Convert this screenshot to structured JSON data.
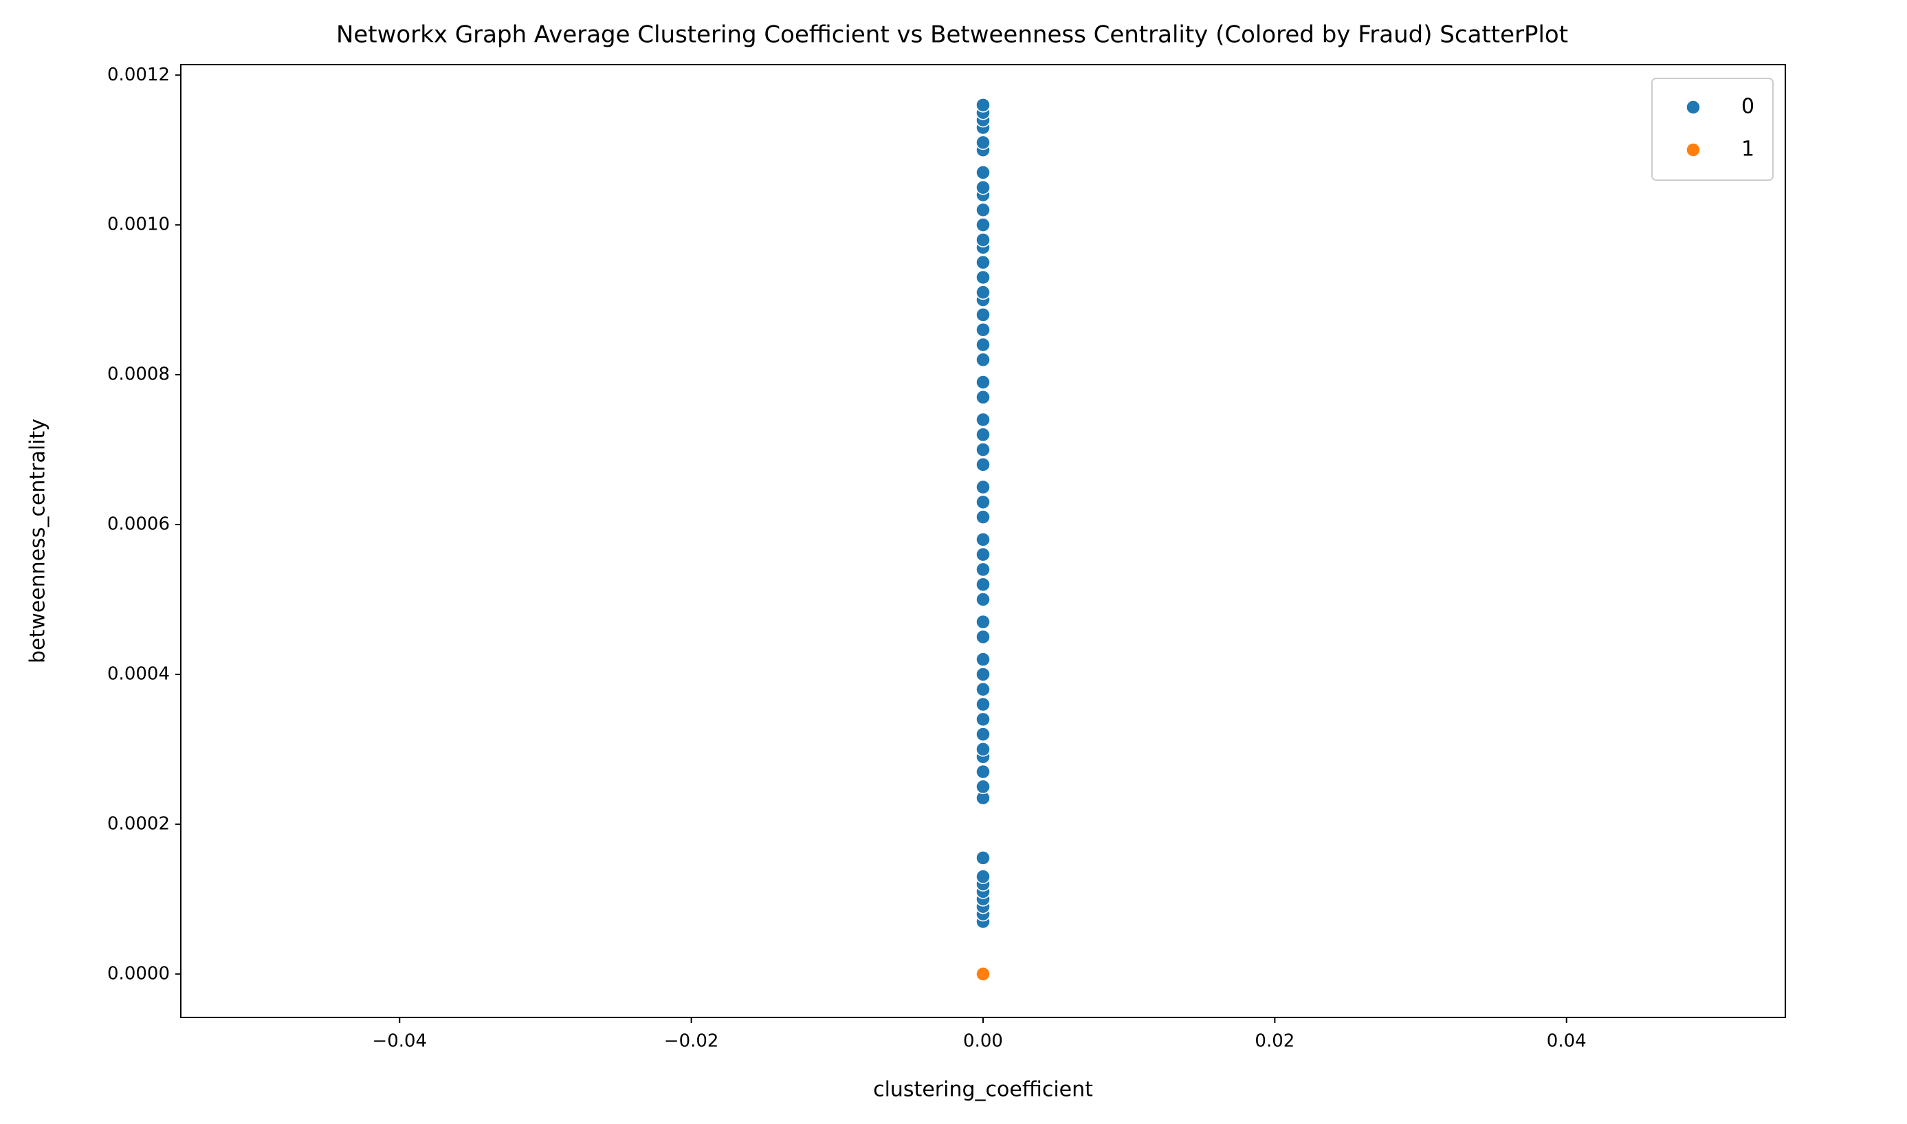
{
  "chart_data": {
    "type": "scatter",
    "title": "Networkx Graph Average Clustering Coefficient vs Betweenness Centrality (Colored by Fraud) ScatterPlot",
    "x_label": "clustering_coefficient",
    "y_label": "betweenness_centrality",
    "xlim": [
      -0.055,
      0.055
    ],
    "ylim": [
      -5.8e-05,
      0.001214
    ],
    "xticks": [
      {
        "value": -0.04,
        "label": "−0.04"
      },
      {
        "value": -0.02,
        "label": "−0.02"
      },
      {
        "value": 0,
        "label": "0.00"
      },
      {
        "value": 0.02,
        "label": "0.02"
      },
      {
        "value": 0.04,
        "label": "0.04"
      }
    ],
    "yticks": [
      {
        "value": 0,
        "label": "0.0000"
      },
      {
        "value": 0.0002,
        "label": "0.0002"
      },
      {
        "value": 0.0004,
        "label": "0.0004"
      },
      {
        "value": 0.0006,
        "label": "0.0006"
      },
      {
        "value": 0.0008,
        "label": "0.0008"
      },
      {
        "value": 0.001,
        "label": "0.0010"
      },
      {
        "value": 0.0012,
        "label": "0.0012"
      }
    ],
    "legend": "upper right",
    "series": [
      {
        "name": "0",
        "color": "#1f77b4",
        "x": [
          0,
          0,
          0,
          0,
          0,
          0,
          0,
          0,
          0,
          0,
          0,
          0,
          0,
          0,
          0,
          0,
          0,
          0,
          0,
          0,
          0,
          0,
          0,
          0,
          0,
          0,
          0,
          0,
          0,
          0,
          0,
          0,
          0,
          0,
          0,
          0,
          0,
          0,
          0,
          0,
          0,
          0,
          0,
          0,
          0,
          0,
          0,
          0,
          0,
          0,
          0,
          0,
          0,
          0,
          0,
          0
        ],
        "values": [
          7e-05,
          8e-05,
          9e-05,
          0.0001,
          0.00011,
          0.00012,
          0.00013,
          0.000155,
          0.000235,
          0.00025,
          0.00027,
          0.00029,
          0.0003,
          0.00032,
          0.00034,
          0.00036,
          0.00038,
          0.0004,
          0.00042,
          0.00045,
          0.00047,
          0.0005,
          0.00052,
          0.00054,
          0.00056,
          0.00058,
          0.00061,
          0.00063,
          0.00065,
          0.00068,
          0.0007,
          0.00072,
          0.00074,
          0.00077,
          0.00079,
          0.00082,
          0.00084,
          0.00086,
          0.00088,
          0.0009,
          0.00091,
          0.00093,
          0.00095,
          0.00097,
          0.00098,
          0.001,
          0.00102,
          0.00104,
          0.00105,
          0.00107,
          0.0011,
          0.00111,
          0.00113,
          0.00114,
          0.00115,
          0.00116
        ]
      },
      {
        "name": "1",
        "color": "#ff7f0e",
        "x": [
          0
        ],
        "values": [
          0
        ]
      }
    ]
  }
}
